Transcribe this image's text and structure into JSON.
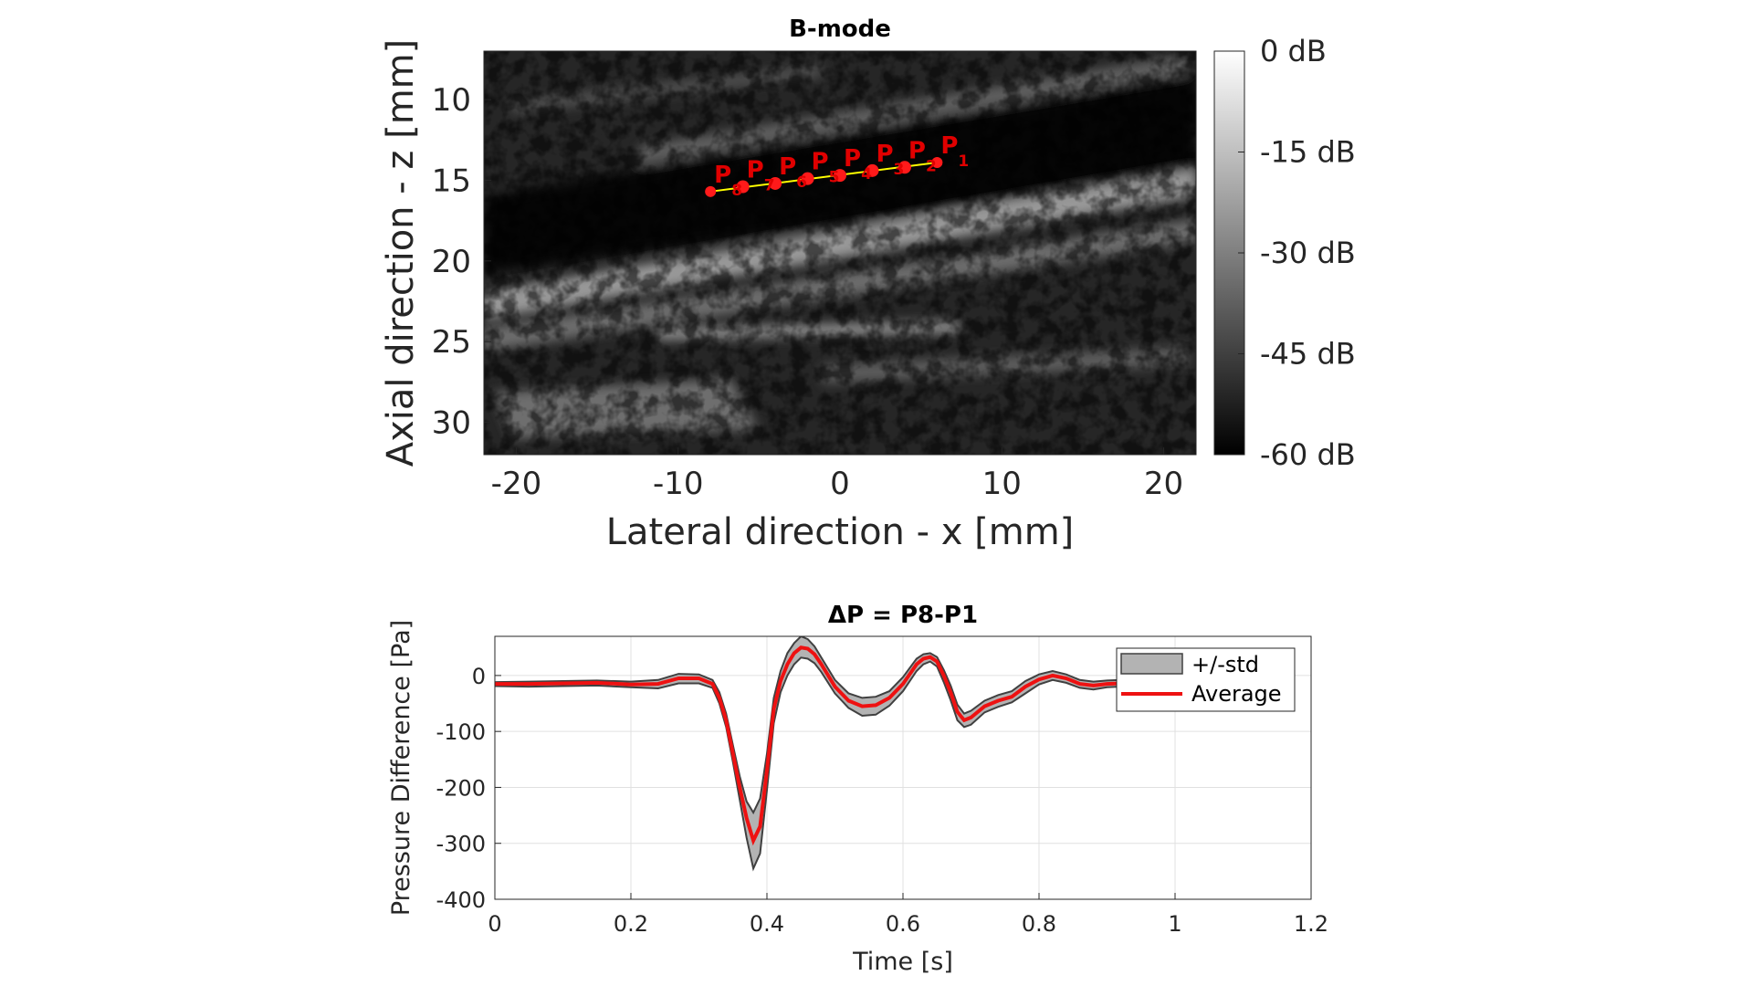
{
  "chart_data": [
    {
      "type": "image",
      "title": "B-mode",
      "xlabel": "Lateral direction - x [mm]",
      "ylabel": "Axial direction - z [mm]",
      "xlim": [
        -22,
        22
      ],
      "ylim": [
        7,
        32
      ],
      "xticks": [
        -20,
        -10,
        0,
        10,
        20
      ],
      "yticks": [
        10,
        15,
        20,
        25,
        30
      ],
      "colorbar": {
        "colormap": "gray",
        "range": [
          -60,
          0
        ],
        "ticks": [
          "0 dB",
          "-15 dB",
          "-30 dB",
          "-45 dB",
          "-60 dB"
        ],
        "tick_values": [
          0,
          -15,
          -30,
          -45,
          -60
        ]
      },
      "measurement_line": {
        "color": "#ffff00",
        "from": [
          -8,
          15.7
        ],
        "to": [
          6,
          13.9
        ]
      },
      "points": [
        {
          "label": "P",
          "sub": "1",
          "x": 6.0,
          "z": 13.9
        },
        {
          "label": "P",
          "sub": "2",
          "x": 4.0,
          "z": 14.2
        },
        {
          "label": "P",
          "sub": "3",
          "x": 2.0,
          "z": 14.4
        },
        {
          "label": "P",
          "sub": "4",
          "x": 0.0,
          "z": 14.7
        },
        {
          "label": "P",
          "sub": "5",
          "x": -2.0,
          "z": 14.9
        },
        {
          "label": "P",
          "sub": "6",
          "x": -4.0,
          "z": 15.2
        },
        {
          "label": "P",
          "sub": "7",
          "x": -6.0,
          "z": 15.4
        },
        {
          "label": "P",
          "sub": "8",
          "x": -8.0,
          "z": 15.7
        }
      ]
    },
    {
      "type": "line",
      "title": "ΔP = P8-P1",
      "xlabel": "Time [s]",
      "ylabel": "Pressure Difference [Pa]",
      "xlim": [
        0,
        1.2
      ],
      "ylim": [
        -400,
        70
      ],
      "xticks": [
        0,
        0.2,
        0.4,
        0.6,
        0.8,
        1,
        1.2
      ],
      "xtick_labels": [
        "0",
        "0.2",
        "0.4",
        "0.6",
        "0.8",
        "1",
        "1.2"
      ],
      "yticks": [
        0,
        -100,
        -200,
        -300,
        -400
      ],
      "grid": true,
      "legend": {
        "placement": "top-right",
        "entries": [
          "+/-std",
          "Average"
        ]
      },
      "series": [
        {
          "name": "Average",
          "color": "#ee1111",
          "x": [
            0,
            0.05,
            0.1,
            0.15,
            0.2,
            0.24,
            0.27,
            0.3,
            0.32,
            0.33,
            0.34,
            0.35,
            0.36,
            0.37,
            0.38,
            0.39,
            0.4,
            0.41,
            0.42,
            0.43,
            0.44,
            0.45,
            0.46,
            0.47,
            0.48,
            0.5,
            0.52,
            0.54,
            0.56,
            0.58,
            0.6,
            0.62,
            0.63,
            0.64,
            0.65,
            0.66,
            0.67,
            0.68,
            0.69,
            0.7,
            0.72,
            0.74,
            0.76,
            0.78,
            0.8,
            0.82,
            0.84,
            0.86,
            0.88,
            0.9,
            0.92
          ],
          "y": [
            -15,
            -15,
            -14,
            -13,
            -16,
            -15,
            -5,
            -5,
            -15,
            -40,
            -80,
            -140,
            -200,
            -255,
            -295,
            -270,
            -170,
            -60,
            -10,
            20,
            40,
            50,
            48,
            38,
            20,
            -20,
            -45,
            -55,
            -53,
            -40,
            -15,
            20,
            30,
            33,
            25,
            0,
            -30,
            -65,
            -80,
            -75,
            -55,
            -45,
            -38,
            -20,
            -7,
            0,
            -5,
            -15,
            -18,
            -15,
            -14
          ]
        },
        {
          "name": "+/-std",
          "color": "#b3b3b3",
          "x": [
            0,
            0.05,
            0.1,
            0.15,
            0.2,
            0.24,
            0.27,
            0.3,
            0.32,
            0.33,
            0.34,
            0.35,
            0.36,
            0.37,
            0.38,
            0.39,
            0.4,
            0.41,
            0.42,
            0.43,
            0.44,
            0.45,
            0.46,
            0.47,
            0.48,
            0.5,
            0.52,
            0.54,
            0.56,
            0.58,
            0.6,
            0.62,
            0.63,
            0.64,
            0.65,
            0.66,
            0.67,
            0.68,
            0.69,
            0.7,
            0.72,
            0.74,
            0.76,
            0.78,
            0.8,
            0.82,
            0.84,
            0.86,
            0.88,
            0.9,
            0.92
          ],
          "upper": [
            -12,
            -11,
            -10,
            -9,
            -11,
            -8,
            3,
            2,
            -8,
            -30,
            -68,
            -125,
            -180,
            -225,
            -245,
            -220,
            -140,
            -40,
            8,
            40,
            58,
            70,
            65,
            52,
            32,
            -8,
            -32,
            -40,
            -38,
            -28,
            -3,
            30,
            38,
            40,
            33,
            10,
            -18,
            -52,
            -68,
            -63,
            -45,
            -35,
            -28,
            -10,
            2,
            8,
            2,
            -8,
            -11,
            -9,
            -8
          ],
          "lower": [
            -19,
            -20,
            -19,
            -18,
            -21,
            -23,
            -14,
            -14,
            -22,
            -50,
            -92,
            -155,
            -222,
            -290,
            -345,
            -318,
            -205,
            -85,
            -30,
            0,
            20,
            32,
            30,
            22,
            6,
            -32,
            -58,
            -72,
            -70,
            -54,
            -28,
            8,
            20,
            25,
            16,
            -12,
            -44,
            -80,
            -92,
            -88,
            -66,
            -56,
            -48,
            -32,
            -16,
            -8,
            -13,
            -22,
            -25,
            -21,
            -20
          ]
        }
      ]
    }
  ]
}
